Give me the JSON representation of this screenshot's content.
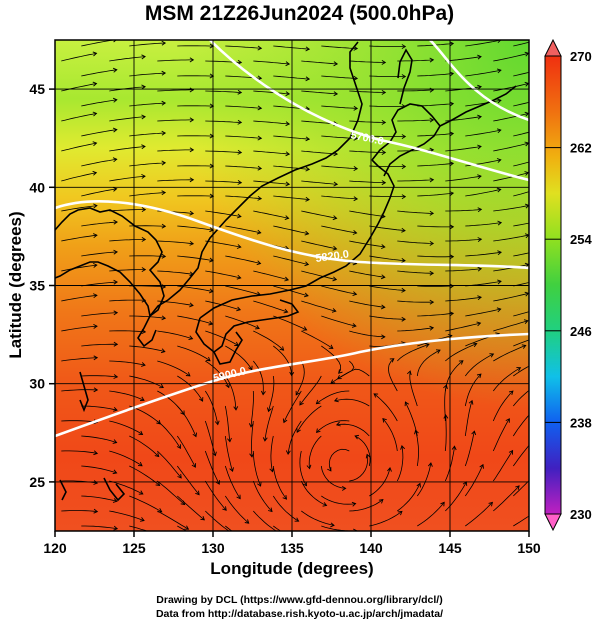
{
  "title": "MSM 21Z26Jun2024 (500.0hPa)",
  "map": {
    "xlabel": "Longitude (degrees)",
    "ylabel": "Latitude  (degrees)",
    "lon_range": [
      120,
      150
    ],
    "lat_range": [
      22.5,
      47.5
    ],
    "lon_ticks": [
      "120",
      "125",
      "130",
      "135",
      "140",
      "145",
      "150"
    ],
    "lat_ticks": [
      "25",
      "30",
      "35",
      "40",
      "45"
    ],
    "grid": true,
    "fill_field": "temperature (K)",
    "overlay": "wind streamlines",
    "coastlines": true
  },
  "contours": [
    {
      "label": "5700.0",
      "color": "#ffffff"
    },
    {
      "label": "5820.0",
      "color": "#ffffff"
    },
    {
      "label": "5900.0",
      "color": "#ffffff"
    }
  ],
  "colorbar": {
    "ticks": [
      "270",
      "262",
      "254",
      "246",
      "238",
      "230"
    ],
    "min": 230,
    "max": 270,
    "colors": [
      "#ff60c8",
      "#c020c0",
      "#4020c0",
      "#1060f0",
      "#10c0e8",
      "#20d080",
      "#40d040",
      "#90e020",
      "#e0e020",
      "#f0b010",
      "#f07010",
      "#f03010",
      "#f06060"
    ]
  },
  "credits": [
    "Drawing by DCL (https://www.gfd-dennou.org/library/dcl/)",
    "Data from http://database.rish.kyoto-u.ac.jp/arch/jmadata/"
  ]
}
